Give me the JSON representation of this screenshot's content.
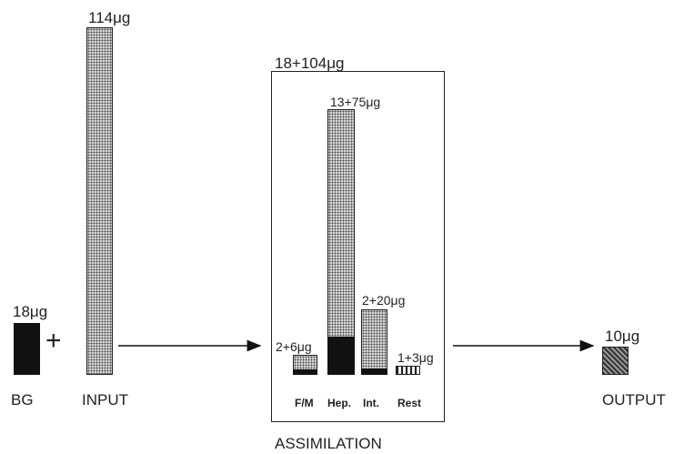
{
  "labels": {
    "bg_amount": "18μg",
    "bg": "BG",
    "plus": "+",
    "input_amount": "114μg",
    "input": "INPUT",
    "assim_amount": "18+104μg",
    "assimilation": "ASSIMILATION",
    "output_amount": "10μg",
    "output": "OUTPUT"
  },
  "assimilation_parts": [
    {
      "category": "F/M",
      "amount": "2+6μg"
    },
    {
      "category": "Hep.",
      "amount": "13+75μg"
    },
    {
      "category": "Int.",
      "amount": "2+20μg"
    },
    {
      "category": "Rest",
      "amount": "1+3μg"
    }
  ]
}
